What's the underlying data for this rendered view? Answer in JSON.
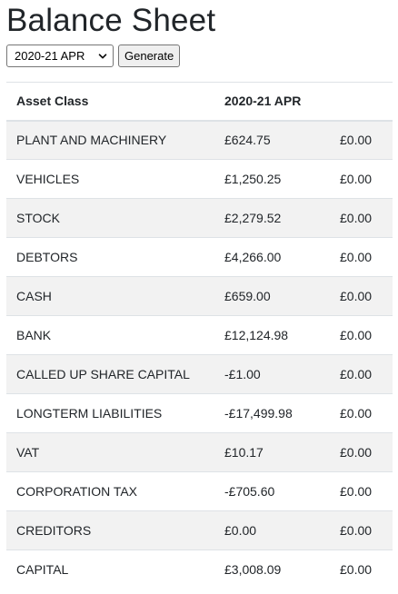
{
  "page": {
    "title": "Balance Sheet"
  },
  "controls": {
    "period_select_value": "2020-21 APR",
    "generate_label": "Generate"
  },
  "table": {
    "headers": [
      "Asset Class",
      "2020-21 APR",
      ""
    ],
    "rows": [
      {
        "asset_class": "PLANT AND MACHINERY",
        "amount": "£624.75",
        "other": "£0.00"
      },
      {
        "asset_class": "VEHICLES",
        "amount": "£1,250.25",
        "other": "£0.00"
      },
      {
        "asset_class": "STOCK",
        "amount": "£2,279.52",
        "other": "£0.00"
      },
      {
        "asset_class": "DEBTORS",
        "amount": "£4,266.00",
        "other": "£0.00"
      },
      {
        "asset_class": "CASH",
        "amount": "£659.00",
        "other": "£0.00"
      },
      {
        "asset_class": "BANK",
        "amount": "£12,124.98",
        "other": "£0.00"
      },
      {
        "asset_class": "CALLED UP SHARE CAPITAL",
        "amount": "-£1.00",
        "other": "£0.00"
      },
      {
        "asset_class": "LONGTERM LIABILITIES",
        "amount": "-£17,499.98",
        "other": "£0.00"
      },
      {
        "asset_class": "VAT",
        "amount": "£10.17",
        "other": "£0.00"
      },
      {
        "asset_class": "CORPORATION TAX",
        "amount": "-£705.60",
        "other": "£0.00"
      },
      {
        "asset_class": "CREDITORS",
        "amount": "£0.00",
        "other": "£0.00"
      },
      {
        "asset_class": "CAPITAL",
        "amount": "£3,008.09",
        "other": "£0.00"
      }
    ]
  },
  "icons": {
    "select_chevron": "chevron-down-icon"
  },
  "colors": {
    "text": "#212529",
    "stripe": "#f2f2f2",
    "border": "#dee2e6"
  }
}
